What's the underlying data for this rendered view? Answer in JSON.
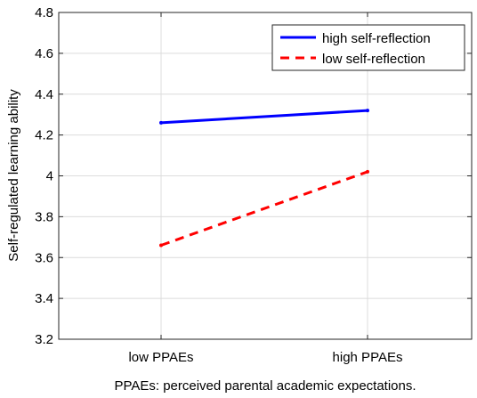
{
  "chart_data": {
    "type": "line",
    "categories": [
      "low PPAEs",
      "high PPAEs"
    ],
    "series": [
      {
        "name": "high self-reflection",
        "values": [
          4.26,
          4.32
        ],
        "color": "#0000ff",
        "dash": "solid"
      },
      {
        "name": "low self-reflection",
        "values": [
          3.66,
          4.02
        ],
        "color": "#ff0000",
        "dash": "dashed"
      }
    ],
    "xlabel": "PPAEs: perceived parental academic expectations.",
    "ylabel": "Self-regulated learning ability",
    "ylim": [
      3.2,
      4.8
    ],
    "yticks": [
      "3.2",
      "3.4",
      "3.6",
      "3.8",
      "4",
      "4.2",
      "4.4",
      "4.6",
      "4.8"
    ],
    "grid": true,
    "legend_position": "top-right"
  }
}
